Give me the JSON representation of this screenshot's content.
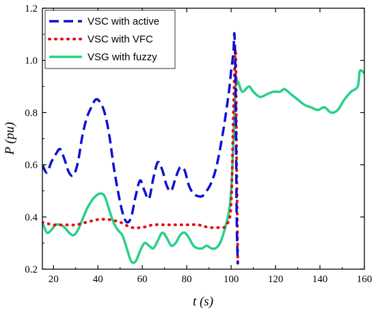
{
  "chart_data": {
    "type": "line",
    "xlabel": "t (s)",
    "ylabel": "P (pu)",
    "xlim": [
      15,
      160
    ],
    "ylim": [
      0.2,
      1.2
    ],
    "x_ticks": [
      20,
      40,
      60,
      80,
      100,
      120,
      140,
      160
    ],
    "y_ticks": [
      0.2,
      0.4,
      0.6,
      0.8,
      1.0,
      1.2
    ],
    "grid": false,
    "legend_position": "top-left",
    "series": [
      {
        "name": "VSC with active",
        "color": "#1010d0",
        "style": "dashed",
        "x": [
          15,
          17,
          19,
          21,
          23,
          25,
          27,
          29,
          31,
          33,
          35,
          37,
          39,
          41,
          43,
          45,
          47,
          49,
          51,
          53,
          55,
          57,
          59,
          61,
          63,
          65,
          67,
          69,
          71,
          73,
          75,
          77,
          79,
          81,
          83,
          85,
          87,
          89,
          91,
          93,
          95,
          97,
          99,
          100,
          101,
          101.5,
          102,
          102.5,
          103
        ],
        "y": [
          0.6,
          0.57,
          0.61,
          0.64,
          0.66,
          0.62,
          0.57,
          0.56,
          0.61,
          0.71,
          0.78,
          0.82,
          0.85,
          0.84,
          0.8,
          0.72,
          0.6,
          0.5,
          0.42,
          0.38,
          0.4,
          0.48,
          0.54,
          0.5,
          0.47,
          0.55,
          0.61,
          0.58,
          0.52,
          0.5,
          0.55,
          0.59,
          0.58,
          0.52,
          0.49,
          0.48,
          0.48,
          0.5,
          0.53,
          0.58,
          0.66,
          0.76,
          0.88,
          0.96,
          1.03,
          1.1,
          0.9,
          0.4,
          0.22
        ]
      },
      {
        "name": "VSC with VFC",
        "color": "#e01010",
        "style": "dotted",
        "x": [
          15,
          20,
          25,
          30,
          35,
          40,
          45,
          50,
          55,
          60,
          65,
          70,
          75,
          80,
          85,
          90,
          95,
          98,
          100,
          101,
          102,
          102.5,
          103
        ],
        "y": [
          0.38,
          0.37,
          0.37,
          0.37,
          0.38,
          0.39,
          0.39,
          0.38,
          0.36,
          0.36,
          0.37,
          0.37,
          0.37,
          0.37,
          0.37,
          0.36,
          0.36,
          0.37,
          0.45,
          0.8,
          1.04,
          0.6,
          0.22
        ]
      },
      {
        "name": "VSG with fuzzy",
        "color": "#28d088",
        "style": "solid",
        "x": [
          15,
          17,
          19,
          21,
          23,
          25,
          27,
          29,
          31,
          33,
          35,
          37,
          39,
          41,
          43,
          45,
          47,
          49,
          51,
          53,
          55,
          57,
          59,
          61,
          63,
          65,
          67,
          69,
          71,
          73,
          75,
          77,
          79,
          81,
          83,
          85,
          87,
          89,
          91,
          93,
          95,
          97,
          99,
          100,
          101,
          102,
          103,
          105,
          108,
          110,
          113,
          116,
          119,
          122,
          124,
          127,
          130,
          133,
          136,
          139,
          142,
          145,
          148,
          151,
          154,
          157,
          158,
          160
        ],
        "y": [
          0.38,
          0.34,
          0.35,
          0.37,
          0.37,
          0.36,
          0.34,
          0.33,
          0.35,
          0.39,
          0.43,
          0.46,
          0.48,
          0.49,
          0.48,
          0.43,
          0.38,
          0.35,
          0.33,
          0.28,
          0.23,
          0.23,
          0.27,
          0.3,
          0.29,
          0.28,
          0.31,
          0.34,
          0.32,
          0.29,
          0.3,
          0.33,
          0.34,
          0.32,
          0.29,
          0.28,
          0.28,
          0.29,
          0.28,
          0.28,
          0.3,
          0.35,
          0.42,
          0.5,
          0.68,
          0.9,
          0.92,
          0.88,
          0.9,
          0.88,
          0.86,
          0.87,
          0.88,
          0.88,
          0.89,
          0.87,
          0.85,
          0.83,
          0.82,
          0.81,
          0.82,
          0.8,
          0.81,
          0.85,
          0.88,
          0.9,
          0.96,
          0.95
        ]
      }
    ]
  }
}
